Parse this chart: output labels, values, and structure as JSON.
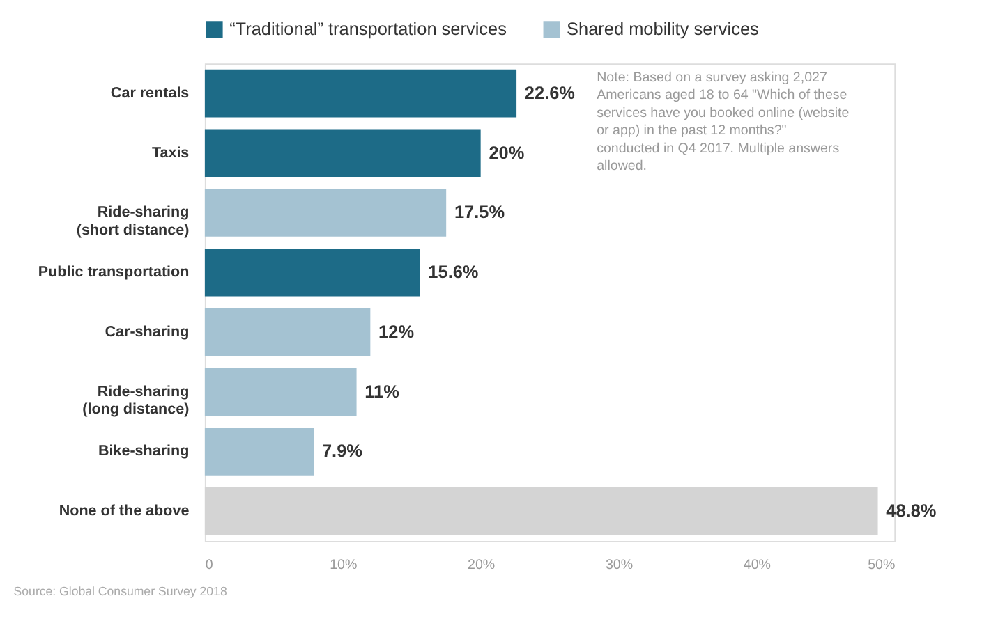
{
  "chart_data": {
    "type": "bar",
    "orientation": "horizontal",
    "categories": [
      "Car rentals",
      "Taxis",
      "Ride-sharing\n(short distance)",
      "Public transportation",
      "Car-sharing",
      "Ride-sharing\n(long distance)",
      "Bike-sharing",
      "None of the above"
    ],
    "series": [
      {
        "name": "“Traditional” transportation services",
        "color": "#1d6b87",
        "values": [
          22.6,
          20,
          null,
          15.6,
          null,
          null,
          null,
          null
        ],
        "value_labels": [
          "22.6%",
          "20%",
          null,
          "15.6%",
          null,
          null,
          null,
          null
        ]
      },
      {
        "name": "Shared mobility services",
        "color": "#a4c2d2",
        "values": [
          null,
          null,
          17.5,
          null,
          12,
          11,
          7.9,
          null
        ],
        "value_labels": [
          null,
          null,
          "17.5%",
          null,
          "12%",
          "11%",
          "7.9%",
          null
        ]
      },
      {
        "color": "#d4d4d4",
        "values": [
          null,
          null,
          null,
          null,
          null,
          null,
          null,
          48.8
        ],
        "value_labels": [
          null,
          null,
          null,
          null,
          null,
          null,
          null,
          "48.8%"
        ]
      }
    ],
    "xlim": [
      0,
      50
    ],
    "xticks": [
      0,
      {
        "value": 10,
        "label": "10%"
      },
      {
        "value": 20,
        "label": "20%"
      },
      {
        "value": 30,
        "label": "30%"
      },
      {
        "value": 40,
        "label": "40%"
      },
      {
        "value": 50,
        "label": "50%"
      }
    ],
    "grid": false,
    "legend": "top",
    "annotations": [
      "Note: Based on a survey asking 2,027 Americans aged 18 to 64 \"Which of these services have you booked online (website or app) in the past 12 months?\" conducted in Q4 2017. Multiple answers allowed.",
      "Source: Global Consumer Survey 2018"
    ]
  }
}
